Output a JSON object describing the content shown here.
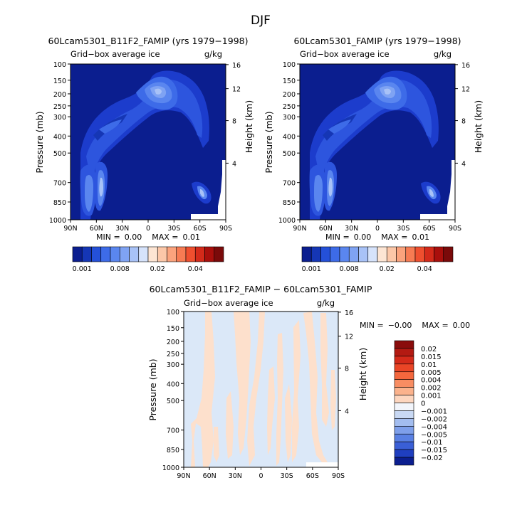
{
  "page_title": "DJF",
  "colors": {
    "background": "#ffffff",
    "base_fill": "#0b1e8f",
    "frame": "#000000",
    "diff_positive": "#fde0cc",
    "diff_negative": "#dbe8f8"
  },
  "chart_data": [
    {
      "type": "heatmap",
      "id": "panel-left",
      "title": "60Lcam5301_B11F2_FAMIP (yrs 1979−1998)",
      "subtitle_left": "Grid−box average ice",
      "subtitle_right": "g/kg",
      "xlabel": "",
      "ylabel": "Pressure (mb)",
      "ylabel_right": "Height (km)",
      "x_ticks": [
        "90N",
        "60N",
        "30N",
        "0",
        "30S",
        "60S",
        "90S"
      ],
      "y_ticks": [
        "100",
        "150",
        "200",
        "250",
        "300",
        "400",
        "500",
        "700",
        "850",
        "1000"
      ],
      "y_right_ticks": [
        "16",
        "12",
        "8",
        "4"
      ],
      "stats": {
        "min_label": "MIN =",
        "min": "0.00",
        "max_label": "MAX =",
        "max": "0.01"
      },
      "colorbar": {
        "labels": [
          "0.001",
          "0.008",
          "0.02",
          "0.04"
        ],
        "colors": [
          "#0b1e8f",
          "#1536b5",
          "#2450d8",
          "#3d6be8",
          "#5a86ef",
          "#7fa3f3",
          "#a8c2f7",
          "#d6e3fb",
          "#fde5d3",
          "#fcc7a8",
          "#fba37d",
          "#f77b53",
          "#ef4f2f",
          "#d42a1a",
          "#a90f0c",
          "#7a0a0a"
        ]
      },
      "features": [
        "upper-tropospheric maximum near the equator at 200-300 mb",
        "extension toward northern mid-latitudes at 400-500 mb",
        "lower-level maxima near 60N-70N at 700-850 mb",
        "small maximum near 60S at 850 mb"
      ]
    },
    {
      "type": "heatmap",
      "id": "panel-right",
      "title": "60Lcam5301_FAMIP (yrs 1979−1998)",
      "subtitle_left": "Grid−box average ice",
      "subtitle_right": "g/kg",
      "xlabel": "",
      "ylabel": "Pressure (mb)",
      "ylabel_right": "Height (km)",
      "x_ticks": [
        "90N",
        "60N",
        "30N",
        "0",
        "30S",
        "60S",
        "90S"
      ],
      "y_ticks": [
        "100",
        "150",
        "200",
        "250",
        "300",
        "400",
        "500",
        "700",
        "850",
        "1000"
      ],
      "y_right_ticks": [
        "16",
        "12",
        "8",
        "4"
      ],
      "stats": {
        "min_label": "MIN =",
        "min": "0.00",
        "max_label": "MAX =",
        "max": "0.01"
      },
      "colorbar": {
        "labels": [
          "0.001",
          "0.008",
          "0.02",
          "0.04"
        ],
        "colors": [
          "#0b1e8f",
          "#1536b5",
          "#2450d8",
          "#3d6be8",
          "#5a86ef",
          "#7fa3f3",
          "#a8c2f7",
          "#d6e3fb",
          "#fde5d3",
          "#fcc7a8",
          "#fba37d",
          "#f77b53",
          "#ef4f2f",
          "#d42a1a",
          "#a90f0c",
          "#7a0a0a"
        ]
      }
    },
    {
      "type": "heatmap",
      "id": "panel-diff",
      "title": "60Lcam5301_B11F2_FAMIP − 60Lcam5301_FAMIP",
      "subtitle_left": "Grid−box average ice",
      "subtitle_right": "g/kg",
      "xlabel": "",
      "ylabel": "Pressure (mb)",
      "ylabel_right": "Height (km)",
      "x_ticks": [
        "90N",
        "60N",
        "30N",
        "0",
        "30S",
        "60S",
        "90S"
      ],
      "y_ticks": [
        "100",
        "150",
        "200",
        "250",
        "300",
        "400",
        "500",
        "700",
        "850",
        "1000"
      ],
      "y_right_ticks": [
        "16",
        "12",
        "8",
        "4"
      ],
      "stats": {
        "min_label": "MIN =",
        "min": "−0.00",
        "max_label": "MAX =",
        "max": "0.00"
      },
      "colorbar": {
        "labels": [
          "0.02",
          "0.015",
          "0.01",
          "0.005",
          "0.004",
          "0.002",
          "0.001",
          "0",
          "−0.001",
          "−0.002",
          "−0.004",
          "−0.005",
          "−0.01",
          "−0.015",
          "−0.02"
        ],
        "colors": [
          "#8a0c0c",
          "#b31a12",
          "#d42a1a",
          "#ea4526",
          "#f4673d",
          "#f88d62",
          "#fbb28c",
          "#fdd6bf",
          "#f2f5fb",
          "#c8d8f3",
          "#a3bdef",
          "#7e9fea",
          "#5980e3",
          "#3a5fd6",
          "#1f3fc0",
          "#0b1e8f"
        ]
      }
    }
  ]
}
